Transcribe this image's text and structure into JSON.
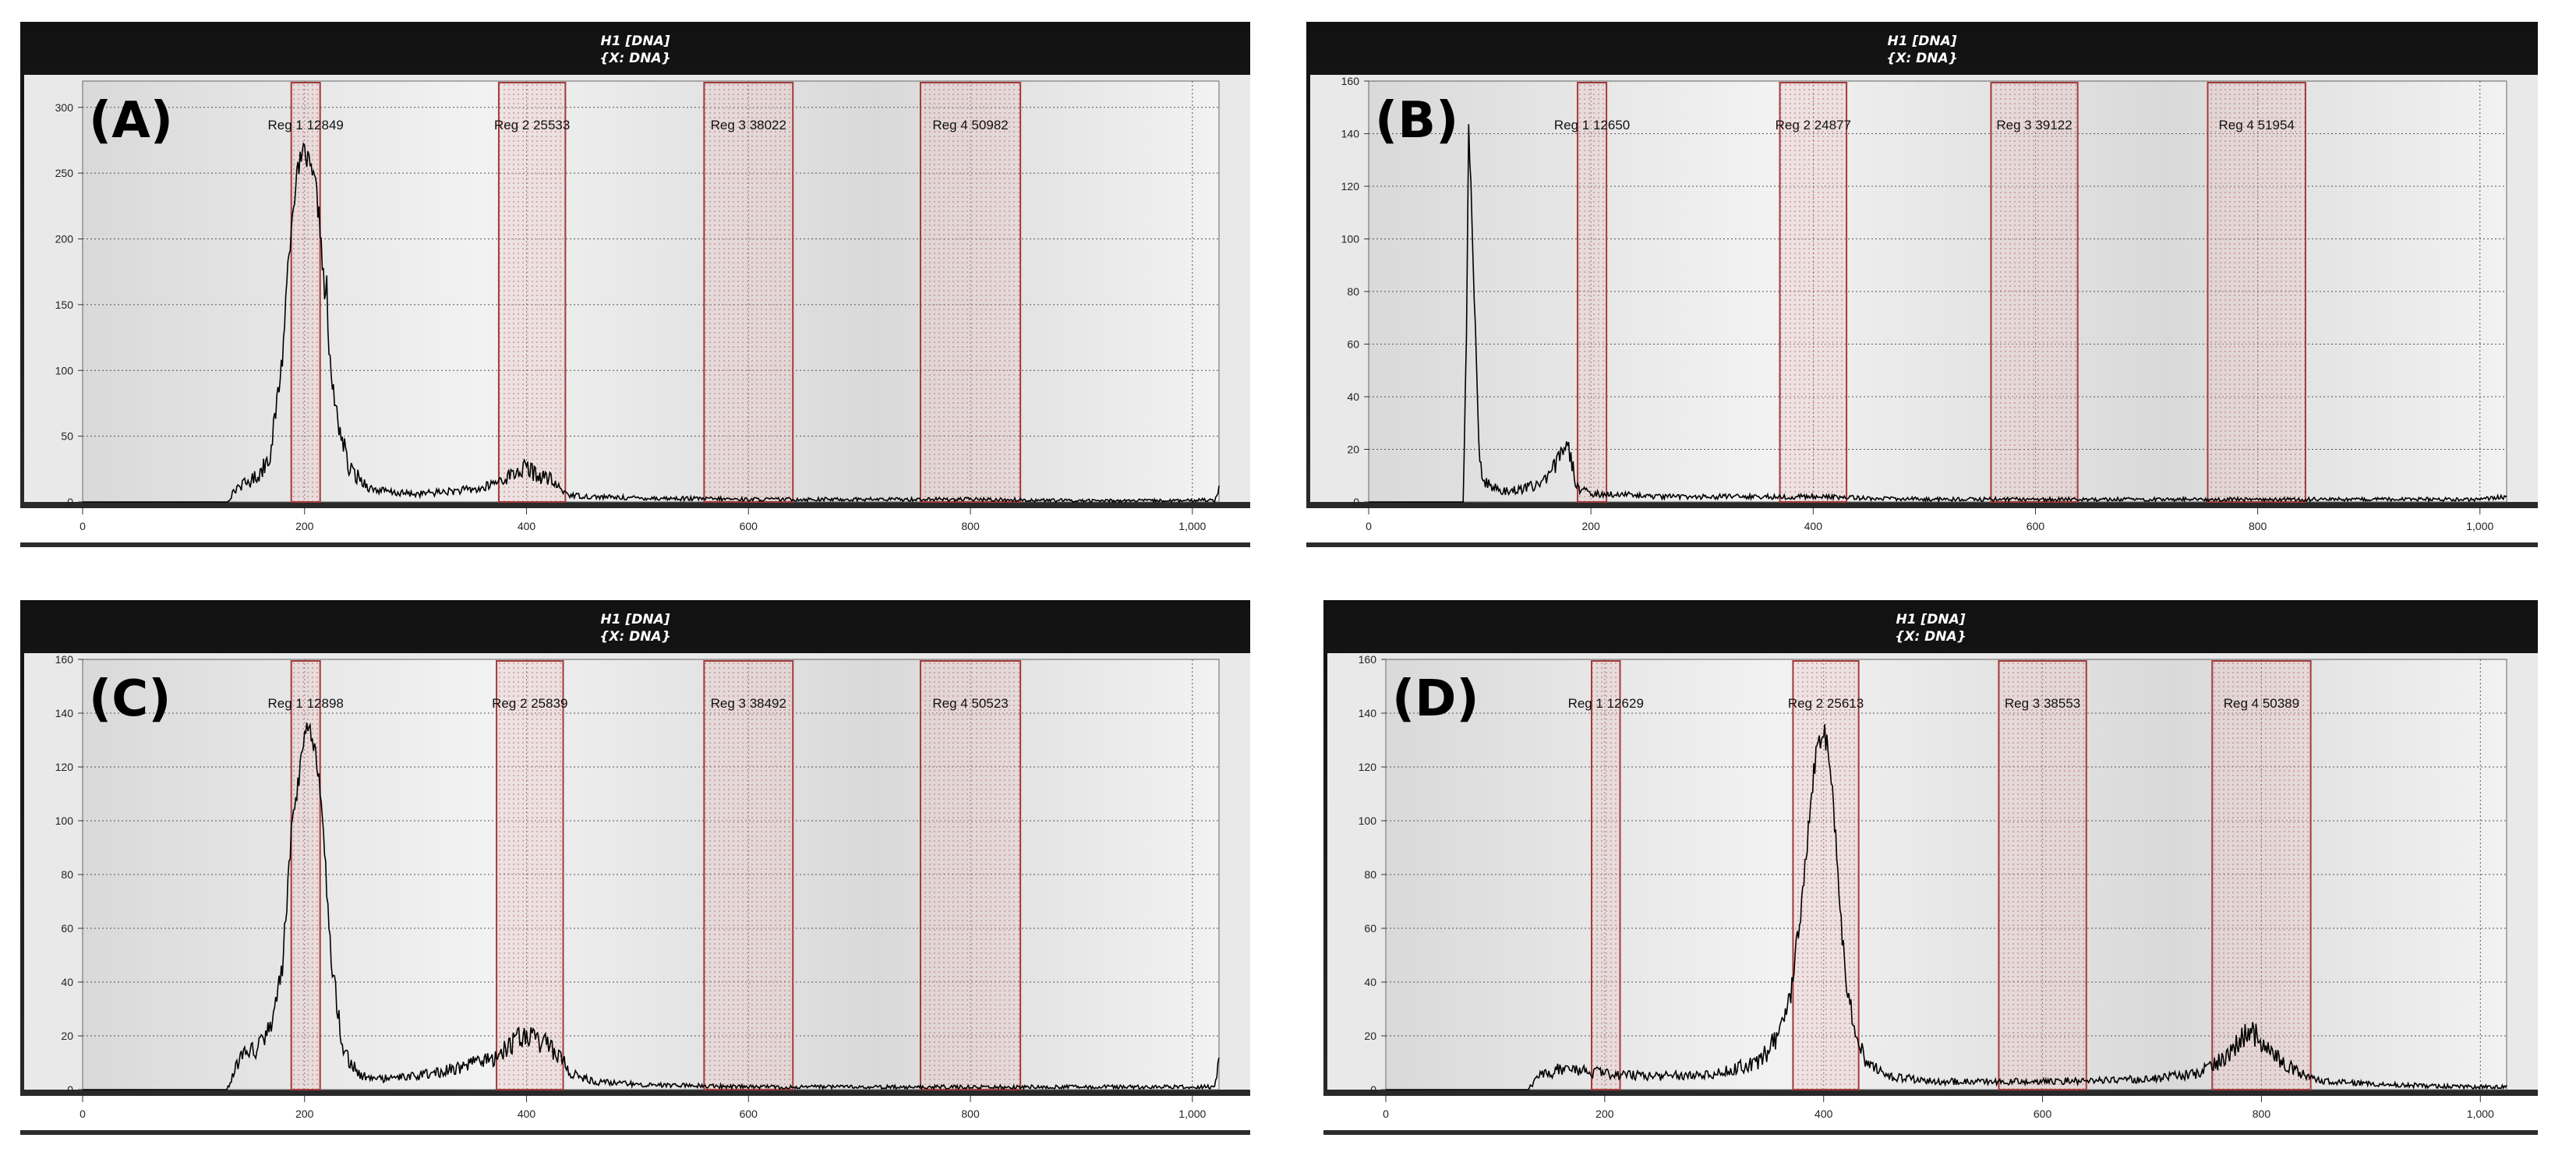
{
  "colors": {
    "frame": "#2b2b2b",
    "frame_top": "#111111",
    "plot_bg_light": "#f2f2f2",
    "plot_bg_dark": "#d9d9d9",
    "region_border": "#a33b3b",
    "region_fill": "#e8c4c4",
    "trace": "#000000",
    "axis_strip": "#ffffff"
  },
  "chart_data": [
    {
      "type": "line",
      "panel_label": "(A)",
      "title_line1": "H1 [DNA]",
      "title_line2": "{X: DNA}",
      "xlim": [
        0,
        1024
      ],
      "ylim": [
        0,
        320
      ],
      "x_ticks": [
        0,
        200,
        400,
        600,
        800,
        1000
      ],
      "x_tick_labels": [
        "0",
        "200",
        "400",
        "600",
        "800",
        "1,000"
      ],
      "y_ticks": [
        0,
        50,
        100,
        150,
        200,
        250,
        300
      ],
      "y_tick_labels": [
        "0",
        "50",
        "100",
        "150",
        "200",
        "250",
        "300"
      ],
      "grid": true,
      "regions": [
        {
          "label": "Reg 1 12849",
          "x_start": 188,
          "x_end": 214
        },
        {
          "label": "Reg 2 25533",
          "x_start": 375,
          "x_end": 435
        },
        {
          "label": "Reg 3 38022",
          "x_start": 560,
          "x_end": 640
        },
        {
          "label": "Reg 4 50982",
          "x_start": 755,
          "x_end": 845
        }
      ],
      "series": [
        {
          "x": [
            0,
            130,
            140,
            150,
            160,
            170,
            180,
            185,
            190,
            195,
            198,
            200,
            203,
            206,
            210,
            215,
            218,
            220,
            222,
            228,
            240,
            260,
            280,
            300,
            330,
            360,
            380,
            390,
            400,
            410,
            420,
            430,
            440,
            460,
            500,
            600,
            700,
            800,
            900,
            1000,
            1010,
            1020,
            1024
          ],
          "y": [
            0,
            0,
            12,
            15,
            22,
            40,
            110,
            180,
            230,
            255,
            262,
            268,
            258,
            250,
            240,
            200,
            155,
            165,
            110,
            70,
            25,
            10,
            7,
            6,
            8,
            10,
            18,
            22,
            26,
            20,
            18,
            10,
            5,
            4,
            3,
            2,
            2,
            2,
            1,
            1,
            2,
            1,
            12
          ]
        }
      ]
    },
    {
      "type": "line",
      "panel_label": "(B)",
      "title_line1": "H1 [DNA]",
      "title_line2": "{X: DNA}",
      "xlim": [
        0,
        1024
      ],
      "ylim": [
        0,
        160
      ],
      "x_ticks": [
        0,
        200,
        400,
        600,
        800,
        1000
      ],
      "x_tick_labels": [
        "0",
        "200",
        "400",
        "600",
        "800",
        "1,000"
      ],
      "y_ticks": [
        0,
        20,
        40,
        60,
        80,
        100,
        120,
        140,
        160
      ],
      "y_tick_labels": [
        "0",
        "20",
        "40",
        "60",
        "80",
        "100",
        "120",
        "140",
        "160"
      ],
      "grid": true,
      "regions": [
        {
          "label": "Reg 1 12650",
          "x_start": 188,
          "x_end": 214
        },
        {
          "label": "Reg 2 24877",
          "x_start": 370,
          "x_end": 430
        },
        {
          "label": "Reg 3 39122",
          "x_start": 560,
          "x_end": 638
        },
        {
          "label": "Reg 4 51954",
          "x_start": 755,
          "x_end": 843
        }
      ],
      "series": [
        {
          "x": [
            0,
            85,
            88,
            90,
            92,
            95,
            98,
            100,
            105,
            110,
            120,
            140,
            160,
            170,
            175,
            178,
            182,
            186,
            190,
            200,
            220,
            260,
            320,
            400,
            500,
            600,
            700,
            800,
            900,
            1000,
            1024
          ],
          "y": [
            0,
            0,
            60,
            140,
            120,
            80,
            40,
            15,
            8,
            6,
            4,
            5,
            8,
            15,
            22,
            25,
            18,
            8,
            5,
            3,
            3,
            2,
            2,
            2,
            1,
            1,
            1,
            1,
            1,
            1,
            2
          ]
        }
      ]
    },
    {
      "type": "line",
      "panel_label": "(C)",
      "title_line1": "H1 [DNA]",
      "title_line2": "{X: DNA}",
      "xlim": [
        0,
        1024
      ],
      "ylim": [
        0,
        160
      ],
      "x_ticks": [
        0,
        200,
        400,
        600,
        800,
        1000
      ],
      "x_tick_labels": [
        "0",
        "200",
        "400",
        "600",
        "800",
        "1,000"
      ],
      "y_ticks": [
        0,
        20,
        40,
        60,
        80,
        100,
        120,
        140,
        160
      ],
      "y_tick_labels": [
        "0",
        "20",
        "40",
        "60",
        "80",
        "100",
        "120",
        "140",
        "160"
      ],
      "grid": true,
      "regions": [
        {
          "label": "Reg 1 12898",
          "x_start": 188,
          "x_end": 214
        },
        {
          "label": "Reg 2 25839",
          "x_start": 373,
          "x_end": 433
        },
        {
          "label": "Reg 3 38492",
          "x_start": 560,
          "x_end": 640
        },
        {
          "label": "Reg 4 50523",
          "x_start": 755,
          "x_end": 845
        }
      ],
      "series": [
        {
          "x": [
            0,
            130,
            140,
            150,
            160,
            170,
            180,
            188,
            195,
            200,
            205,
            210,
            215,
            220,
            225,
            235,
            250,
            270,
            300,
            340,
            370,
            390,
            400,
            410,
            420,
            430,
            440,
            460,
            500,
            600,
            700,
            800,
            900,
            1000,
            1020,
            1024
          ],
          "y": [
            0,
            0,
            10,
            14,
            16,
            25,
            45,
            95,
            115,
            130,
            135,
            125,
            110,
            75,
            45,
            15,
            5,
            4,
            5,
            8,
            12,
            18,
            20,
            18,
            16,
            12,
            6,
            3,
            2,
            1,
            1,
            1,
            1,
            1,
            1,
            10
          ]
        }
      ]
    },
    {
      "type": "line",
      "panel_label": "(D)",
      "title_line1": "H1 [DNA]",
      "title_line2": "{X: DNA}",
      "xlim": [
        0,
        1024
      ],
      "ylim": [
        0,
        160
      ],
      "x_ticks": [
        0,
        200,
        400,
        600,
        800,
        1000
      ],
      "x_tick_labels": [
        "0",
        "200",
        "400",
        "600",
        "800",
        "1,000"
      ],
      "y_ticks": [
        0,
        20,
        40,
        60,
        80,
        100,
        120,
        140,
        160
      ],
      "y_tick_labels": [
        "0",
        "20",
        "40",
        "60",
        "80",
        "100",
        "120",
        "140",
        "160"
      ],
      "grid": true,
      "regions": [
        {
          "label": "Reg 1 12629",
          "x_start": 188,
          "x_end": 214
        },
        {
          "label": "Reg 2 25613",
          "x_start": 372,
          "x_end": 432
        },
        {
          "label": "Reg 3 38553",
          "x_start": 560,
          "x_end": 640
        },
        {
          "label": "Reg 4 50389",
          "x_start": 755,
          "x_end": 845
        }
      ],
      "series": [
        {
          "x": [
            0,
            130,
            140,
            150,
            160,
            200,
            250,
            300,
            340,
            360,
            370,
            380,
            390,
            395,
            400,
            405,
            410,
            415,
            420,
            430,
            440,
            460,
            500,
            600,
            700,
            740,
            760,
            780,
            790,
            800,
            820,
            840,
            860,
            900,
            1000,
            1024
          ],
          "y": [
            0,
            0,
            5,
            6,
            8,
            6,
            5,
            6,
            10,
            20,
            35,
            70,
            115,
            130,
            133,
            125,
            100,
            70,
            40,
            20,
            10,
            5,
            3,
            3,
            4,
            6,
            10,
            18,
            22,
            18,
            10,
            5,
            3,
            2,
            1,
            1
          ]
        }
      ]
    }
  ]
}
